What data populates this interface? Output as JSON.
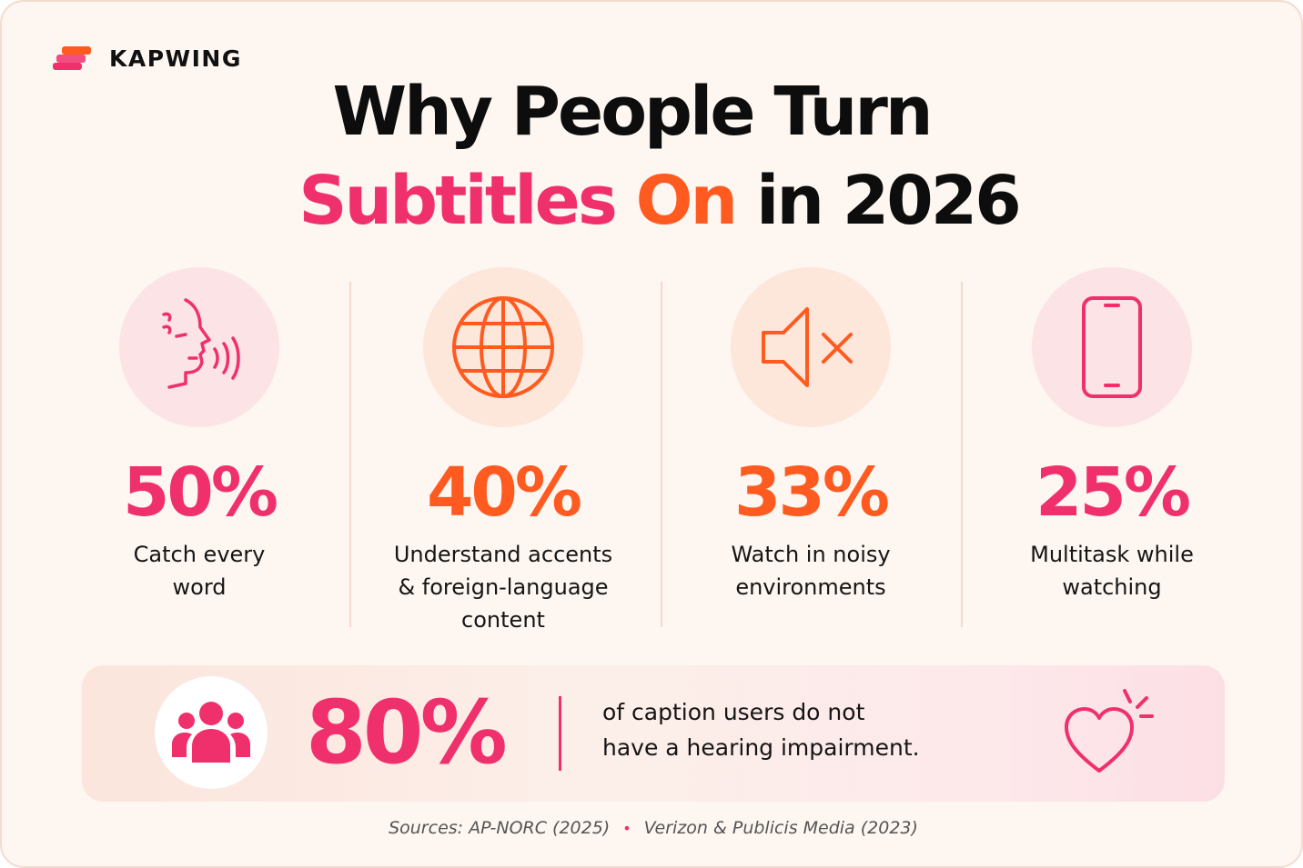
{
  "brand": {
    "name": "KAPWING"
  },
  "title": {
    "line1": "Why People Turn",
    "line2_part1": "Subtitles",
    "line2_part2": "On",
    "line2_part3": "in 2026"
  },
  "stats": [
    {
      "value": "50%",
      "desc_line1": "Catch every",
      "desc_line2": "word",
      "desc_line3": "",
      "icon": "speaking-face-icon",
      "color": "#f0306d"
    },
    {
      "value": "40%",
      "desc_line1": "Understand accents",
      "desc_line2": "& foreign-language",
      "desc_line3": "content",
      "icon": "globe-icon",
      "color": "#ff5a1f"
    },
    {
      "value": "33%",
      "desc_line1": "Watch in noisy",
      "desc_line2": "environments",
      "desc_line3": "",
      "icon": "muted-speaker-icon",
      "color": "#ff5a1f"
    },
    {
      "value": "25%",
      "desc_line1": "Multitask while",
      "desc_line2": "watching",
      "desc_line3": "",
      "icon": "smartphone-icon",
      "color": "#f0306d"
    }
  ],
  "highlight": {
    "value": "80%",
    "text_line1": "of caption users do not",
    "text_line2": "have a hearing impairment.",
    "left_icon": "people-group-icon",
    "right_icon": "heart-icon"
  },
  "sources": {
    "label": "Sources: AP-NORC (2025)",
    "separator": "•",
    "label2": "Verizon & Publicis Media (2023)"
  },
  "colors": {
    "pink": "#f0306d",
    "orange": "#ff5a1f",
    "background": "#fdf6f1"
  }
}
